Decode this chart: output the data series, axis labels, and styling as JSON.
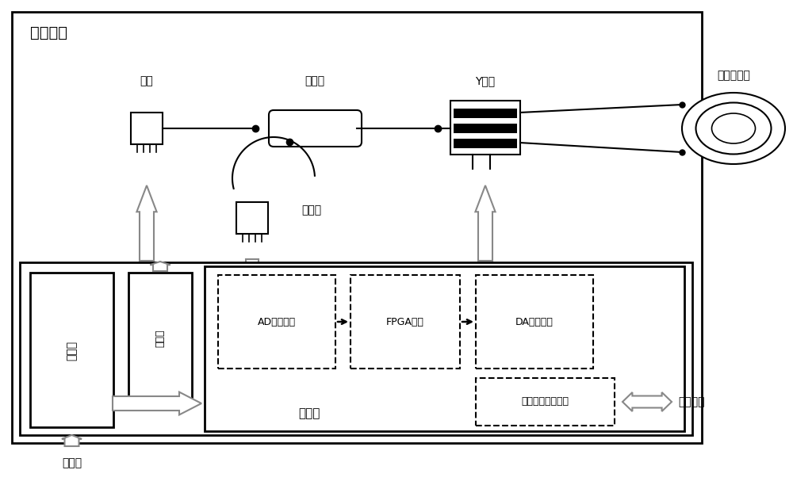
{
  "title": "筛环系统",
  "bg_color": "#ffffff",
  "border_color": "#000000",
  "text_color": "#000000",
  "labels": {
    "guangyuan": "光源",
    "hege": "耦合器",
    "tance": "探测器",
    "ybodao": "Y波导",
    "beice": "被测光纤环",
    "dianyuan_ban": "电源板",
    "guangyuan_ban": "光源板",
    "zhukong_ban": "主控板",
    "ad": "AD采样电路",
    "fpga": "FPGA芯片",
    "da": "DA反馈电路",
    "shuju": "数据输入输出电路",
    "tongxin": "通信端口",
    "jiaoliu": "交流电"
  }
}
